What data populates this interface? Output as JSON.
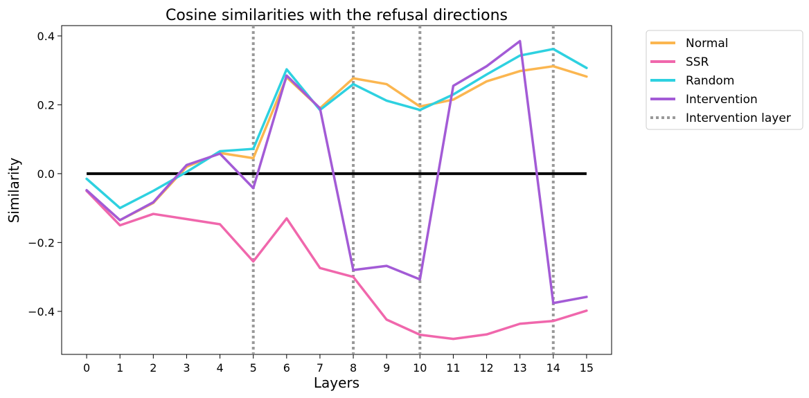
{
  "chart_data": {
    "type": "line",
    "title": "Cosine similarities with the refusal directions",
    "xlabel": "Layers",
    "ylabel": "Similarity",
    "x": [
      0,
      1,
      2,
      3,
      4,
      5,
      6,
      7,
      8,
      9,
      10,
      11,
      12,
      13,
      14,
      15
    ],
    "xlim": [
      -0.75,
      15.75
    ],
    "ylim": [
      -0.525,
      0.43
    ],
    "yticks": [
      -0.4,
      -0.2,
      0.0,
      0.2,
      0.4
    ],
    "ytick_labels": [
      "−0.4",
      "−0.2",
      "0.0",
      "0.2",
      "0.4"
    ],
    "xtick_labels": [
      "0",
      "1",
      "2",
      "3",
      "4",
      "5",
      "6",
      "7",
      "8",
      "9",
      "10",
      "11",
      "12",
      "13",
      "14",
      "15"
    ],
    "grid": false,
    "legend_position": "outside-right-top",
    "series": [
      {
        "name": "Normal",
        "color": "#FBB650",
        "values": [
          -0.05,
          -0.135,
          -0.085,
          0.02,
          0.06,
          0.045,
          0.28,
          0.19,
          0.277,
          0.26,
          0.195,
          0.215,
          0.268,
          0.298,
          0.312,
          0.282
        ]
      },
      {
        "name": "SSR",
        "color": "#F067AC",
        "values": [
          -0.05,
          -0.15,
          -0.117,
          -0.132,
          -0.147,
          -0.255,
          -0.13,
          -0.274,
          -0.3,
          -0.424,
          -0.468,
          -0.48,
          -0.467,
          -0.436,
          -0.428,
          -0.398
        ]
      },
      {
        "name": "Random",
        "color": "#2ED1E0",
        "values": [
          -0.015,
          -0.1,
          -0.05,
          0.005,
          0.065,
          0.072,
          0.303,
          0.185,
          0.26,
          0.212,
          0.185,
          0.23,
          0.288,
          0.343,
          0.362,
          0.307
        ]
      },
      {
        "name": "Intervention",
        "color": "#A35BD6",
        "values": [
          -0.048,
          -0.135,
          -0.083,
          0.025,
          0.058,
          -0.042,
          0.285,
          0.19,
          -0.28,
          -0.268,
          -0.307,
          0.255,
          0.312,
          0.385,
          -0.376,
          -0.358
        ]
      }
    ],
    "zero_line": {
      "y": 0.0,
      "x_range": [
        0,
        15
      ],
      "color": "#000000"
    },
    "intervention_layers": {
      "name": "Intervention layer",
      "x": [
        5,
        8,
        10,
        14
      ],
      "color": "#999999"
    }
  }
}
